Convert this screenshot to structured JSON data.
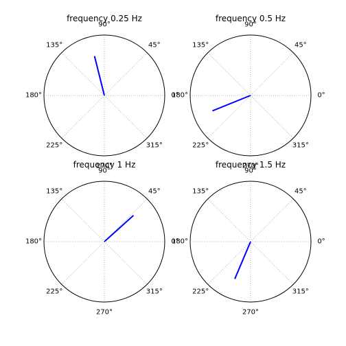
{
  "figure": {
    "background": "#ffffff",
    "line_color": "#0000ff",
    "grid_color": "#b0b0b0",
    "frame_color": "#000000"
  },
  "chart_data": [
    {
      "type": "polar-line",
      "title": "frequency 0.25 Hz",
      "theta_ticks": [
        "0°",
        "45°",
        "90°",
        "135°",
        "180°",
        "225°",
        "270°",
        "315°"
      ],
      "radial_max": 1.0,
      "grid": true,
      "series": [
        {
          "theta_deg": [
            0,
            104
          ],
          "r": [
            0,
            0.67
          ]
        }
      ]
    },
    {
      "type": "polar-line",
      "title": "frequency 0.5 Hz",
      "theta_ticks": [
        "0°",
        "45°",
        "90°",
        "135°",
        "180°",
        "225°",
        "270°",
        "315°"
      ],
      "radial_max": 1.0,
      "grid": true,
      "series": [
        {
          "theta_deg": [
            0,
            202
          ],
          "r": [
            0,
            0.68
          ]
        }
      ]
    },
    {
      "type": "polar-line",
      "title": "frequency 1 Hz",
      "theta_ticks": [
        "0°",
        "45°",
        "90°",
        "135°",
        "180°",
        "225°",
        "270°",
        "315°"
      ],
      "radial_max": 1.0,
      "grid": true,
      "series": [
        {
          "theta_deg": [
            0,
            42
          ],
          "r": [
            0,
            0.65
          ]
        }
      ]
    },
    {
      "type": "polar-line",
      "title": "frequency 1.5 Hz",
      "theta_ticks": [
        "0°",
        "45°",
        "90°",
        "135°",
        "180°",
        "225°",
        "270°",
        "315°"
      ],
      "radial_max": 1.0,
      "grid": true,
      "series": [
        {
          "theta_deg": [
            0,
            247
          ],
          "r": [
            0,
            0.67
          ]
        }
      ]
    }
  ]
}
